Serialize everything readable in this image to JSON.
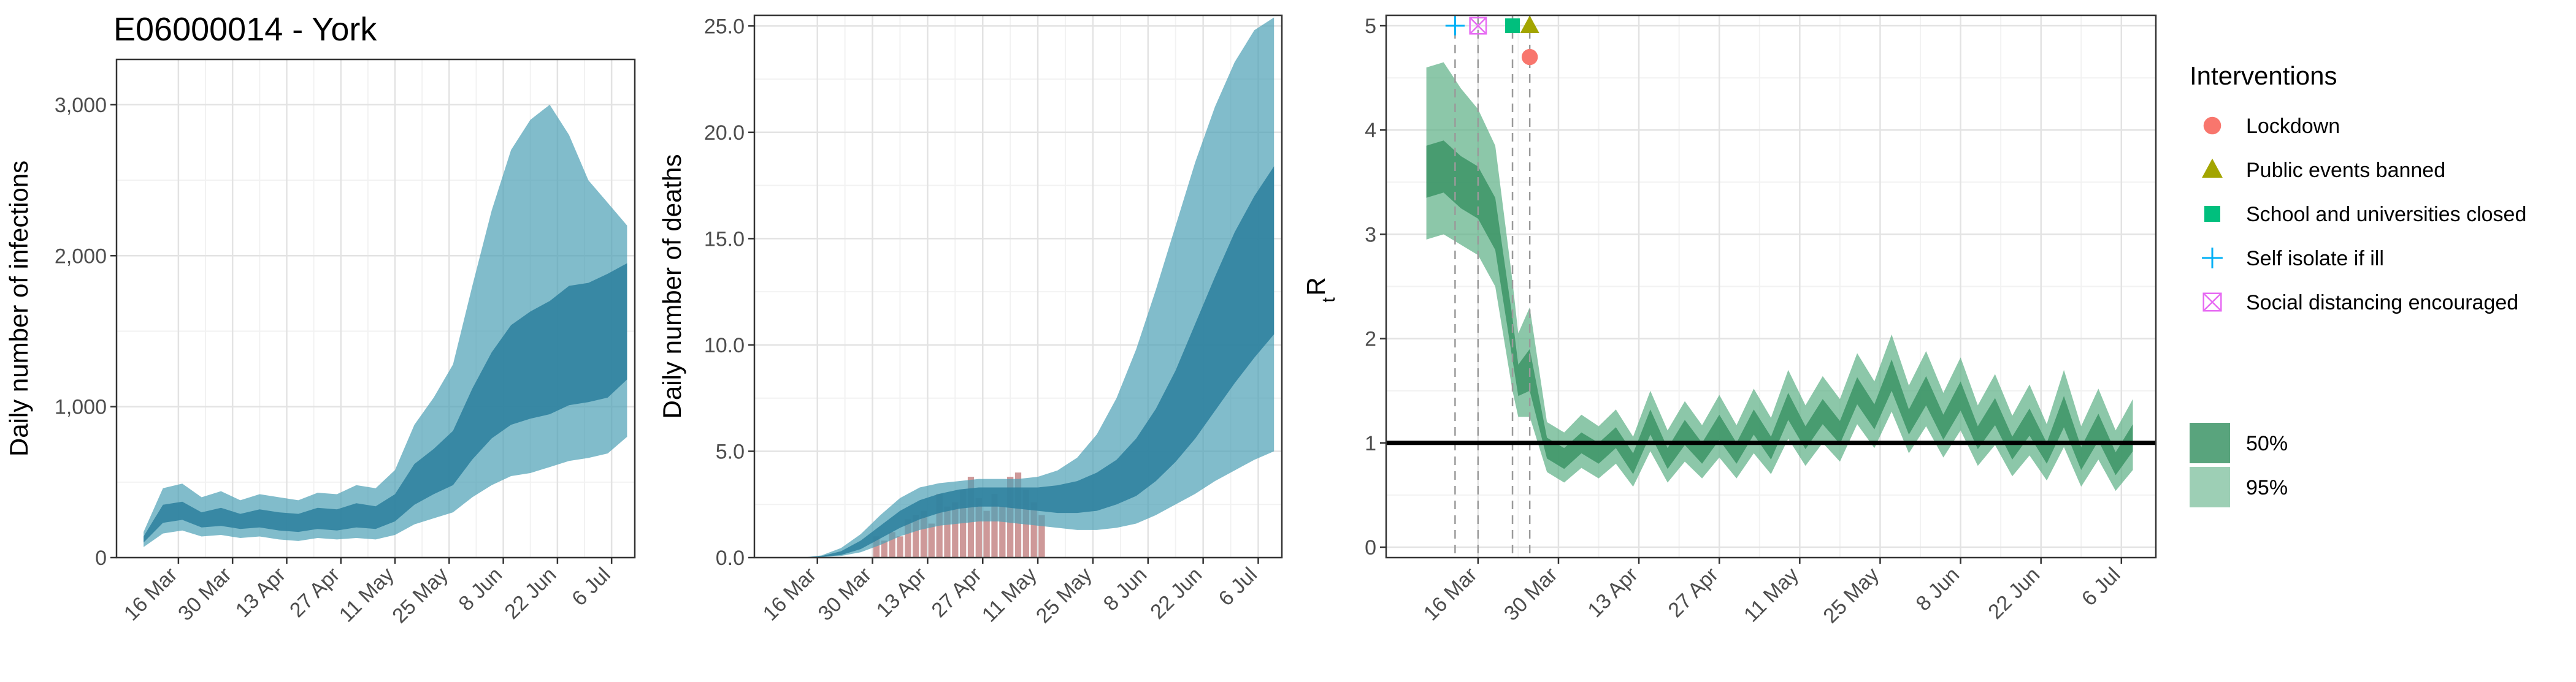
{
  "title": "E06000014 - York",
  "colors": {
    "infection_band": "#4B9FB5",
    "infection_inner": "#2C7F9E",
    "death_band": "#4B9FB5",
    "death_inner": "#2C7F9E",
    "death_bars": "#C98E8E",
    "rt_band": "#5BAF84",
    "rt_inner": "#3C9466",
    "lockdown": "#F8766D",
    "public_events_banned": "#A3A500",
    "school_closed": "#00BF7D",
    "self_isolate": "#00B0F6",
    "social_distancing": "#E76BF3"
  },
  "chart_data": [
    {
      "type": "area",
      "panel": "infections",
      "ylabel": "Daily number of infections",
      "xlabel": "",
      "x_tick_labels": [
        "16 Mar",
        "30 Mar",
        "13 Apr",
        "27 Apr",
        "11 May",
        "25 May",
        "8 Jun",
        "22 Jun",
        "6 Jul"
      ],
      "x_tick_days": [
        14,
        28,
        42,
        56,
        70,
        84,
        98,
        112,
        126
      ],
      "xlim_days": [
        -2,
        132
      ],
      "ylim": [
        0,
        3300
      ],
      "y_ticks": [
        0,
        1000,
        2000,
        3000
      ],
      "y_tick_labels": [
        "0",
        "1,000",
        "2,000",
        "3,000"
      ],
      "series": [
        {
          "name": "",
          "days": [
            5,
            10,
            15,
            20,
            25,
            30,
            35,
            40,
            45,
            50,
            55,
            60,
            65,
            70,
            75,
            80,
            85,
            90,
            95,
            100,
            105,
            110,
            115,
            120,
            125,
            130
          ],
          "median": [
            120,
            290,
            310,
            250,
            270,
            240,
            260,
            240,
            230,
            260,
            250,
            280,
            260,
            330,
            480,
            560,
            650,
            870,
            1050,
            1180,
            1250,
            1300,
            1380,
            1400,
            1440,
            1560
          ],
          "ci50_low": [
            100,
            230,
            250,
            200,
            210,
            190,
            200,
            180,
            170,
            190,
            180,
            200,
            190,
            240,
            350,
            420,
            480,
            650,
            790,
            880,
            920,
            950,
            1010,
            1030,
            1060,
            1180
          ],
          "ci50_high": [
            140,
            350,
            370,
            300,
            330,
            290,
            320,
            300,
            290,
            330,
            320,
            360,
            340,
            420,
            620,
            720,
            840,
            1120,
            1360,
            1540,
            1630,
            1700,
            1800,
            1820,
            1880,
            1950
          ],
          "ci95_low": [
            70,
            160,
            180,
            140,
            150,
            130,
            140,
            120,
            110,
            130,
            120,
            130,
            120,
            150,
            220,
            260,
            300,
            400,
            480,
            540,
            560,
            600,
            640,
            660,
            690,
            800
          ],
          "ci95_high": [
            170,
            460,
            490,
            400,
            440,
            380,
            420,
            400,
            380,
            430,
            420,
            480,
            460,
            580,
            880,
            1060,
            1280,
            1800,
            2300,
            2700,
            2900,
            3000,
            2800,
            2500,
            2350,
            2200
          ]
        }
      ]
    },
    {
      "type": "area",
      "panel": "deaths",
      "ylabel": "Daily number of deaths",
      "xlabel": "",
      "x_tick_labels": [
        "16 Mar",
        "30 Mar",
        "13 Apr",
        "27 Apr",
        "11 May",
        "25 May",
        "8 Jun",
        "22 Jun",
        "6 Jul"
      ],
      "x_tick_days": [
        14,
        28,
        42,
        56,
        70,
        84,
        98,
        112,
        126
      ],
      "xlim_days": [
        -2,
        132
      ],
      "ylim": [
        0,
        25.5
      ],
      "y_ticks": [
        0,
        5,
        10,
        15,
        20,
        25
      ],
      "y_tick_labels": [
        "0.0",
        "5.0",
        "10.0",
        "15.0",
        "20.0",
        "25.0"
      ],
      "series": [
        {
          "name": "",
          "days": [
            10,
            15,
            20,
            25,
            30,
            35,
            40,
            45,
            50,
            55,
            60,
            65,
            70,
            75,
            80,
            85,
            90,
            95,
            100,
            105,
            110,
            115,
            120,
            125,
            130
          ],
          "median": [
            0,
            0.05,
            0.2,
            0.6,
            1.2,
            1.8,
            2.3,
            2.6,
            2.8,
            2.9,
            2.9,
            2.9,
            2.8,
            2.8,
            2.9,
            3.1,
            3.5,
            4.2,
            5.2,
            6.6,
            8.3,
            10.3,
            12.6,
            15.2,
            17.9
          ],
          "ci50_low": [
            0,
            0.03,
            0.12,
            0.4,
            0.9,
            1.4,
            1.8,
            2.1,
            2.3,
            2.4,
            2.4,
            2.3,
            2.2,
            2.1,
            2.1,
            2.2,
            2.5,
            2.9,
            3.6,
            4.5,
            5.6,
            6.9,
            8.2,
            9.4,
            10.5
          ],
          "ci50_high": [
            0,
            0.07,
            0.3,
            0.8,
            1.5,
            2.2,
            2.7,
            3.0,
            3.2,
            3.3,
            3.3,
            3.3,
            3.3,
            3.4,
            3.6,
            4.0,
            4.6,
            5.6,
            7.0,
            8.8,
            11.0,
            13.2,
            15.3,
            17.0,
            18.4
          ],
          "ci95_low": [
            0,
            0.02,
            0.08,
            0.25,
            0.6,
            1.0,
            1.3,
            1.5,
            1.6,
            1.7,
            1.7,
            1.6,
            1.5,
            1.4,
            1.3,
            1.3,
            1.4,
            1.6,
            2.0,
            2.5,
            3.0,
            3.6,
            4.1,
            4.6,
            5.0
          ],
          "ci95_high": [
            0,
            0.1,
            0.45,
            1.1,
            2.0,
            2.8,
            3.3,
            3.5,
            3.6,
            3.7,
            3.7,
            3.7,
            3.8,
            4.1,
            4.7,
            5.8,
            7.5,
            9.8,
            12.6,
            15.6,
            18.6,
            21.2,
            23.3,
            24.8,
            25.4
          ]
        }
      ],
      "bars": {
        "name": "",
        "days": [
          29,
          31,
          33,
          35,
          37,
          39,
          41,
          43,
          45,
          47,
          49,
          51,
          53,
          55,
          57,
          59,
          61,
          63,
          65,
          67,
          69,
          71
        ],
        "values": [
          1.0,
          0.8,
          1.2,
          1.0,
          1.8,
          2.0,
          2.2,
          1.6,
          3.0,
          2.4,
          2.6,
          3.2,
          3.8,
          2.8,
          2.2,
          3.0,
          2.4,
          3.8,
          4.0,
          3.2,
          2.6,
          2.0
        ]
      }
    },
    {
      "type": "area",
      "panel": "rt",
      "ylabel": "R",
      "ylabel_subscript": "t",
      "xlabel": "",
      "x_tick_labels": [
        "16 Mar",
        "30 Mar",
        "13 Apr",
        "27 Apr",
        "11 May",
        "25 May",
        "8 Jun",
        "22 Jun",
        "6 Jul"
      ],
      "x_tick_days": [
        14,
        28,
        42,
        56,
        70,
        84,
        98,
        112,
        126
      ],
      "xlim_days": [
        -2,
        132
      ],
      "ylim": [
        -0.1,
        5.1
      ],
      "y_ticks": [
        0,
        1,
        2,
        3,
        4,
        5
      ],
      "y_tick_labels": [
        "0",
        "1",
        "2",
        "3",
        "4",
        "5"
      ],
      "reference_line": 1,
      "intervention_days": [
        10,
        14,
        20,
        23
      ],
      "interventions": [
        {
          "name": "Lockdown",
          "day": 23,
          "y": 4.7,
          "shape": "circle"
        },
        {
          "name": "Public events banned",
          "day": 23,
          "y": 5.0,
          "shape": "triangle"
        },
        {
          "name": "School and universities closed",
          "day": 20,
          "y": 5.0,
          "shape": "square"
        },
        {
          "name": "Self isolate if ill",
          "day": 10,
          "y": 5.0,
          "shape": "plus"
        },
        {
          "name": "Social distancing encouraged",
          "day": 14,
          "y": 5.0,
          "shape": "boxcross"
        }
      ],
      "series": [
        {
          "name": "",
          "days": [
            5,
            8,
            11,
            14,
            17,
            20,
            21,
            23,
            26,
            29,
            32,
            35,
            38,
            41,
            44,
            47,
            50,
            53,
            56,
            59,
            62,
            65,
            68,
            71,
            74,
            77,
            80,
            83,
            86,
            89,
            92,
            95,
            98,
            101,
            104,
            107,
            110,
            113,
            116,
            119,
            122,
            125,
            128
          ],
          "median": [
            3.6,
            3.65,
            3.5,
            3.4,
            3.1,
            2.0,
            1.6,
            1.7,
            0.95,
            0.85,
            1.0,
            0.9,
            1.05,
            0.8,
            1.2,
            0.85,
            1.1,
            0.9,
            1.15,
            0.9,
            1.2,
            0.95,
            1.35,
            1.05,
            1.3,
            1.1,
            1.5,
            1.25,
            1.65,
            1.2,
            1.5,
            1.15,
            1.45,
            1.05,
            1.3,
            0.95,
            1.2,
            0.9,
            1.3,
            0.85,
            1.15,
            0.8,
            1.05
          ],
          "ci50_low": [
            3.35,
            3.4,
            3.25,
            3.15,
            2.85,
            1.8,
            1.45,
            1.5,
            0.85,
            0.75,
            0.9,
            0.8,
            0.95,
            0.7,
            1.08,
            0.75,
            0.98,
            0.8,
            1.03,
            0.8,
            1.08,
            0.84,
            1.22,
            0.94,
            1.18,
            0.99,
            1.37,
            1.13,
            1.5,
            1.08,
            1.36,
            1.03,
            1.31,
            0.94,
            1.17,
            0.84,
            1.07,
            0.8,
            1.15,
            0.74,
            1.02,
            0.69,
            0.92
          ],
          "ci50_high": [
            3.85,
            3.9,
            3.75,
            3.65,
            3.35,
            2.2,
            1.75,
            1.9,
            1.05,
            0.95,
            1.1,
            1.0,
            1.15,
            0.9,
            1.32,
            0.95,
            1.22,
            1.0,
            1.27,
            1.0,
            1.32,
            1.06,
            1.48,
            1.16,
            1.42,
            1.21,
            1.63,
            1.37,
            1.8,
            1.32,
            1.64,
            1.27,
            1.59,
            1.16,
            1.43,
            1.06,
            1.33,
            1.0,
            1.45,
            0.96,
            1.28,
            0.91,
            1.18
          ],
          "ci95_low": [
            2.95,
            3.0,
            2.9,
            2.8,
            2.5,
            1.5,
            1.25,
            1.25,
            0.72,
            0.62,
            0.76,
            0.66,
            0.8,
            0.58,
            0.92,
            0.62,
            0.82,
            0.66,
            0.86,
            0.66,
            0.9,
            0.7,
            1.04,
            0.78,
            1.0,
            0.82,
            1.18,
            0.95,
            1.3,
            0.9,
            1.16,
            0.86,
            1.12,
            0.78,
            0.98,
            0.68,
            0.88,
            0.64,
            0.96,
            0.58,
            0.84,
            0.54,
            0.74
          ],
          "ci95_high": [
            4.6,
            4.65,
            4.4,
            4.2,
            3.85,
            2.55,
            2.05,
            2.3,
            1.2,
            1.1,
            1.27,
            1.16,
            1.32,
            1.06,
            1.5,
            1.12,
            1.4,
            1.17,
            1.46,
            1.17,
            1.52,
            1.24,
            1.7,
            1.36,
            1.64,
            1.42,
            1.86,
            1.59,
            2.04,
            1.55,
            1.88,
            1.48,
            1.82,
            1.36,
            1.66,
            1.26,
            1.56,
            1.18,
            1.7,
            1.16,
            1.52,
            1.12,
            1.42
          ]
        }
      ]
    }
  ],
  "legend": {
    "title": "Interventions",
    "items": [
      {
        "label": "Lockdown",
        "shape": "circle"
      },
      {
        "label": "Public events banned",
        "shape": "triangle"
      },
      {
        "label": "School and universities closed",
        "shape": "square"
      },
      {
        "label": "Self isolate if ill",
        "shape": "plus"
      },
      {
        "label": "Social distancing encouraged",
        "shape": "boxcross"
      }
    ],
    "ci_items": [
      {
        "label": "50%"
      },
      {
        "label": "95%"
      }
    ]
  }
}
